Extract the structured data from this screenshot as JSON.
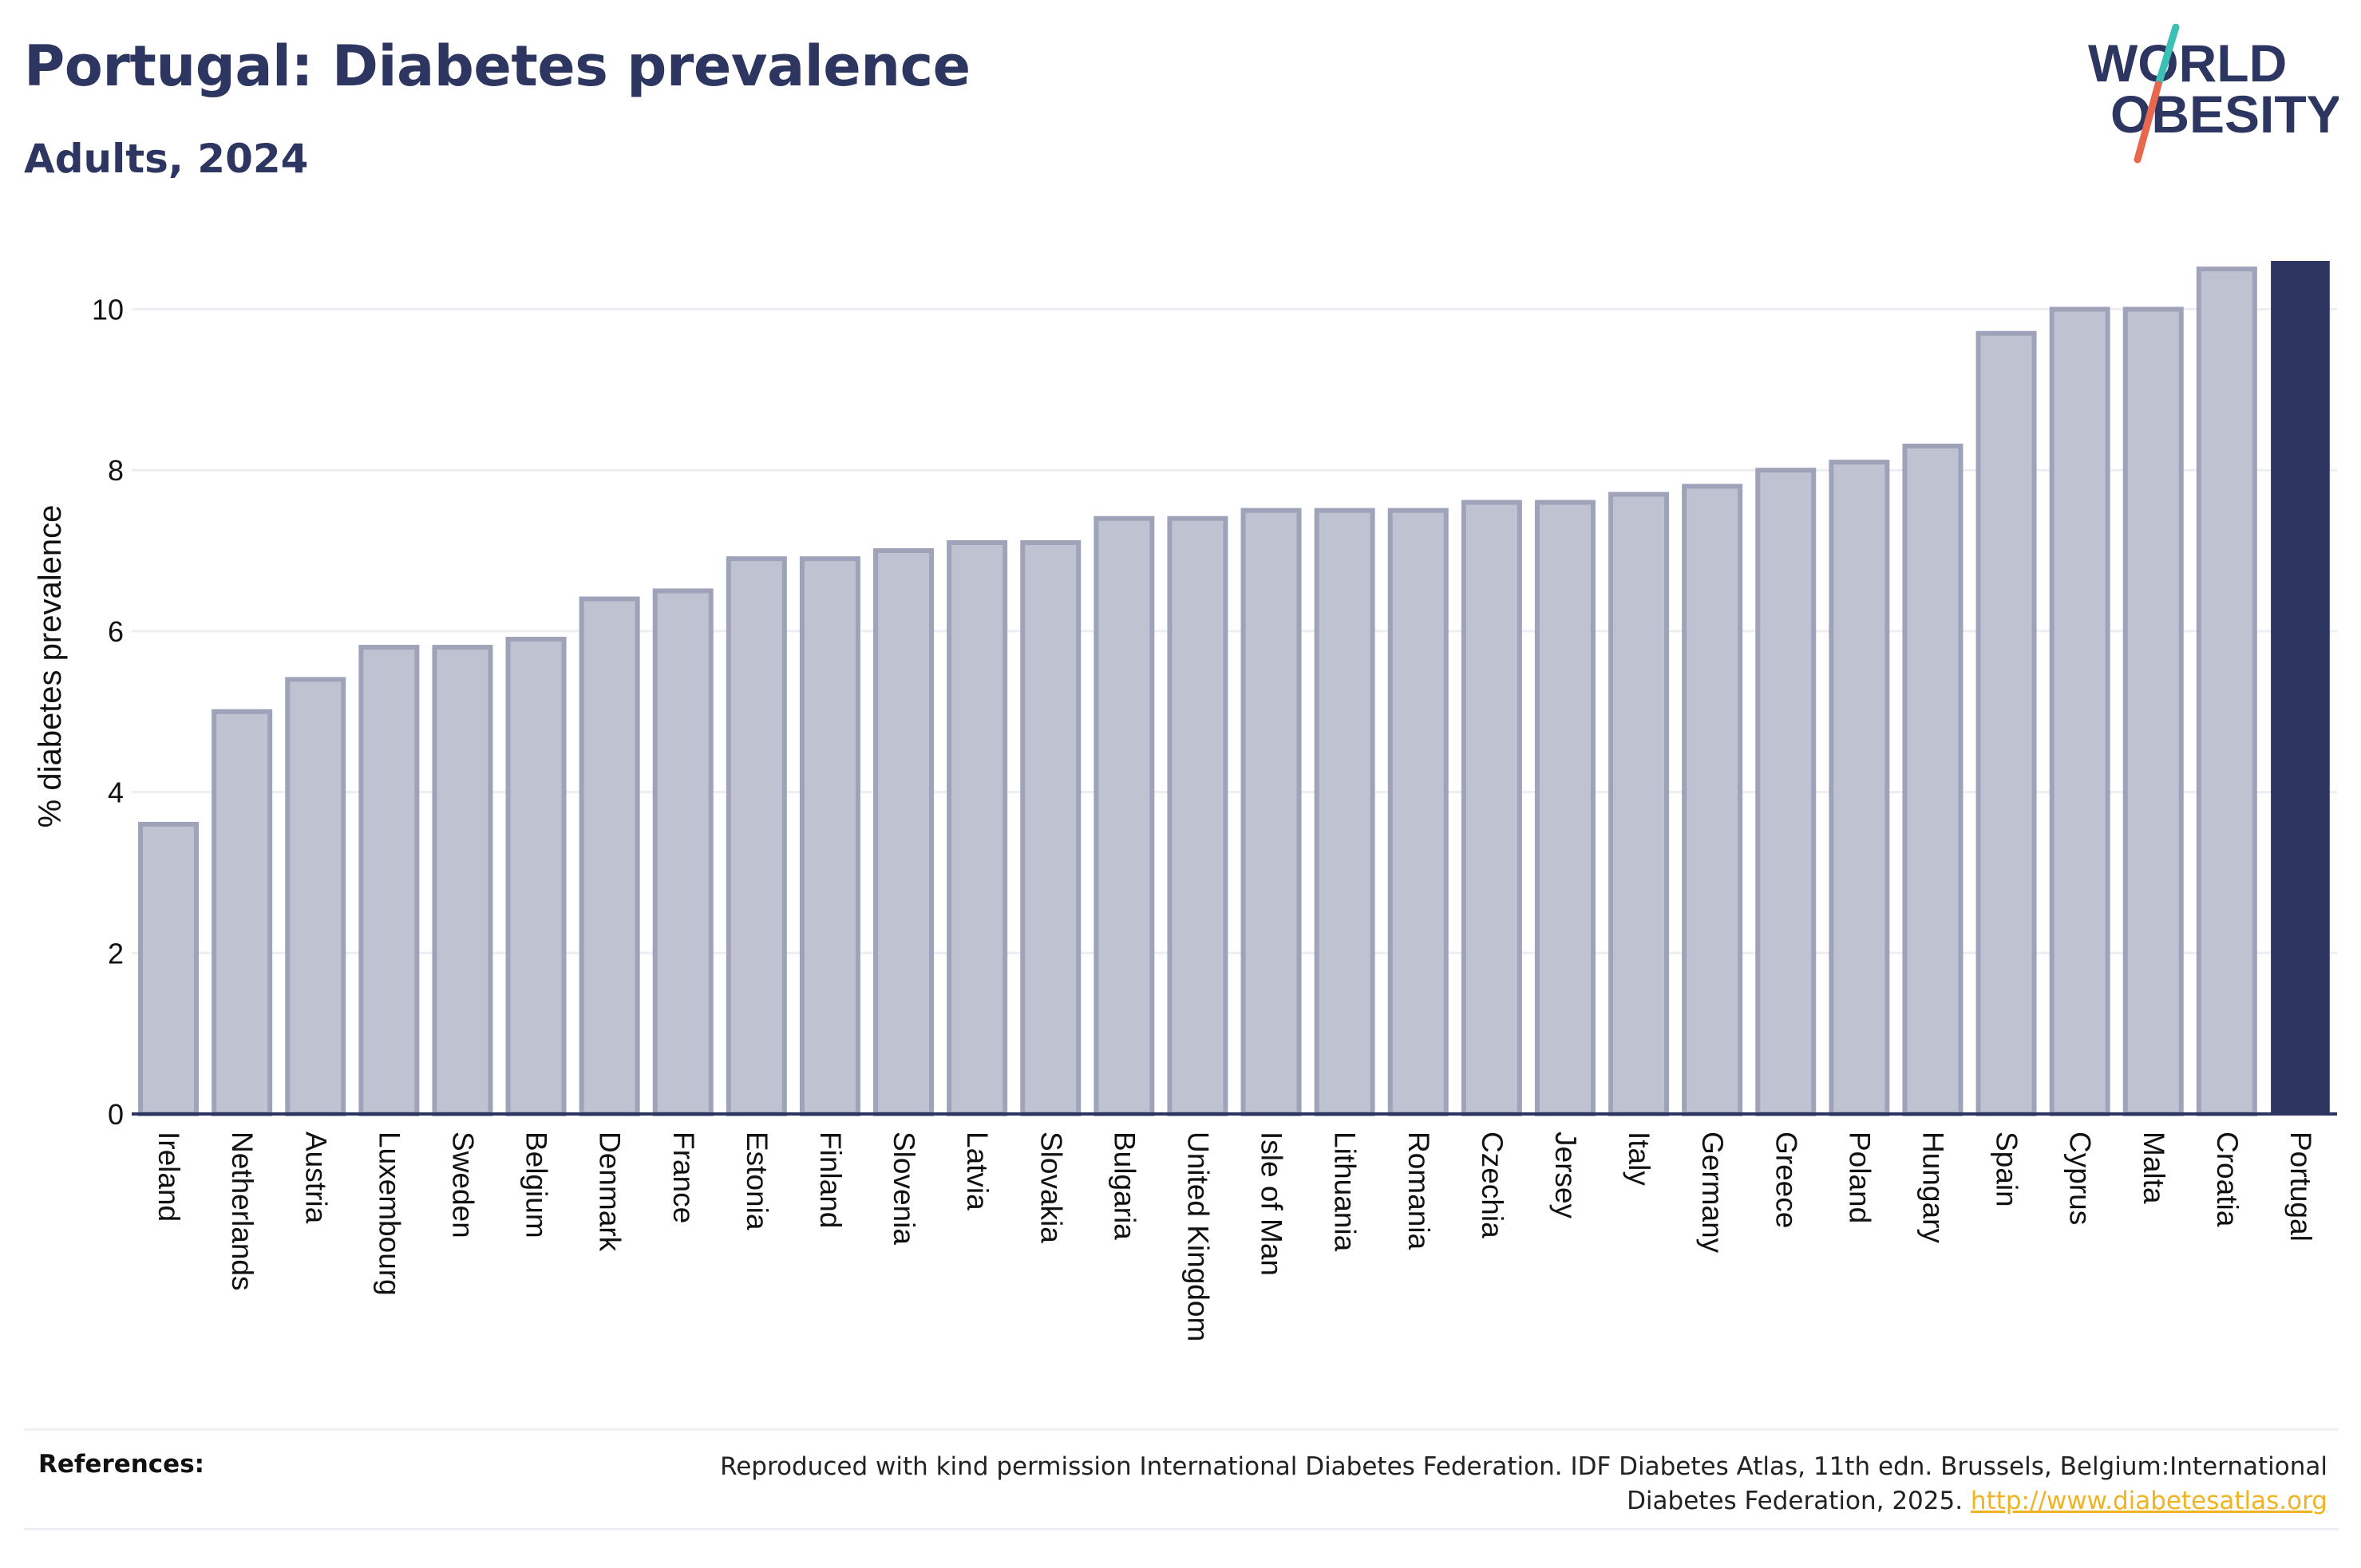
{
  "header": {
    "title": "Portugal: Diabetes prevalence",
    "subtitle": "Adults, 2024"
  },
  "logo": {
    "line1": "WORLD",
    "line2": "OBESITY",
    "colors": {
      "text": "#2d3561",
      "slash_top": "#3cbfb4",
      "slash_bottom": "#e8674f"
    }
  },
  "colors": {
    "bar_fill": "#bfc2d0",
    "bar_stroke": "#9ea3ba",
    "highlight": "#2d3561",
    "grid": "#eceef2",
    "axis": "#2d3561"
  },
  "chart_data": {
    "type": "bar",
    "title": "Portugal: Diabetes prevalence",
    "subtitle": "Adults, 2024",
    "xlabel": "",
    "ylabel": "% diabetes prevalence",
    "ylim": [
      0,
      10.6
    ],
    "yticks": [
      0,
      2,
      4,
      6,
      8,
      10
    ],
    "grid": true,
    "highlight_category": "Portugal",
    "categories": [
      "Ireland",
      "Netherlands",
      "Austria",
      "Luxembourg",
      "Sweden",
      "Belgium",
      "Denmark",
      "France",
      "Estonia",
      "Finland",
      "Slovenia",
      "Latvia",
      "Slovakia",
      "Bulgaria",
      "United Kingdom",
      "Isle of Man",
      "Lithuania",
      "Romania",
      "Czechia",
      "Jersey",
      "Italy",
      "Germany",
      "Greece",
      "Poland",
      "Hungary",
      "Spain",
      "Cyprus",
      "Malta",
      "Croatia",
      "Portugal"
    ],
    "values": [
      3.6,
      5.0,
      5.4,
      5.8,
      5.8,
      5.9,
      6.4,
      6.5,
      6.9,
      6.9,
      7.0,
      7.1,
      7.1,
      7.4,
      7.4,
      7.5,
      7.5,
      7.5,
      7.6,
      7.6,
      7.7,
      7.8,
      8.0,
      8.1,
      8.3,
      9.7,
      10.0,
      10.0,
      10.5,
      10.6
    ]
  },
  "references": {
    "label": "References:",
    "text": "Reproduced with kind permission International Diabetes Federation. IDF Diabetes Atlas, 11th edn. Brussels, Belgium:International Diabetes Federation, 2025.",
    "link": "http://www.diabetesatlas.org"
  }
}
